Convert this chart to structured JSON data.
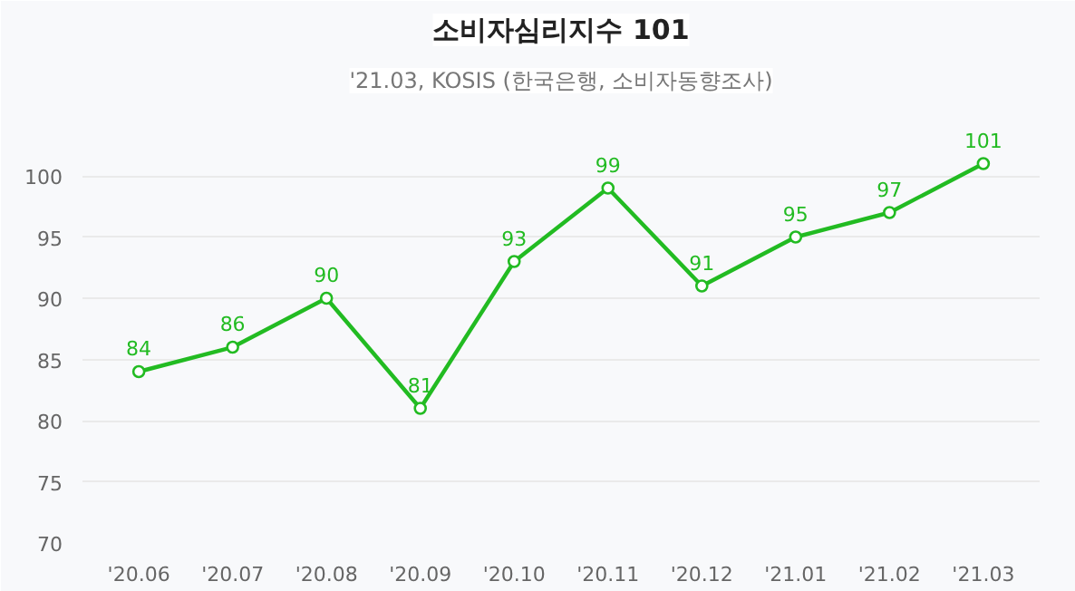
{
  "chart_data": {
    "type": "line",
    "title": "소비자심리지수 101",
    "subtitle": "'21.03, KOSIS (한국은행, 소비자동향조사)",
    "categories": [
      "'20.06",
      "'20.07",
      "'20.08",
      "'20.09",
      "'20.10",
      "'20.11",
      "'20.12",
      "'21.01",
      "'21.02",
      "'21.03"
    ],
    "series": [
      {
        "color": "#22bb22",
        "values": [
          84,
          86,
          90,
          81,
          93,
          99,
          91,
          95,
          97,
          101
        ]
      }
    ],
    "ylim": [
      70,
      106
    ],
    "yticks": [
      70,
      75,
      80,
      85,
      90,
      95,
      100
    ],
    "grid": "y",
    "marker": "circle",
    "line_style": "solid",
    "data_labels": true
  }
}
